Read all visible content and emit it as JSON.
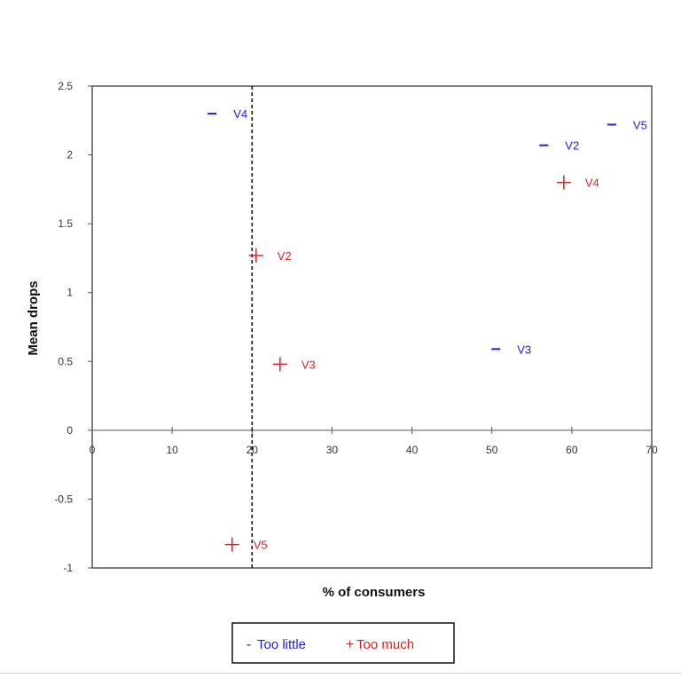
{
  "chart_data": {
    "type": "scatter",
    "xlabel": "% of consumers",
    "ylabel": "Mean drops",
    "xlim": [
      0,
      70
    ],
    "ylim": [
      -1,
      2.5
    ],
    "x_ticks": [
      "0",
      "10",
      "20",
      "30",
      "40",
      "50",
      "60",
      "70"
    ],
    "y_ticks": [
      "-1",
      "-0.5",
      "0",
      "0.5",
      "1",
      "1.5",
      "2",
      "2.5"
    ],
    "reference_line": {
      "x": 20,
      "style": "dashed"
    },
    "series": [
      {
        "name": "Too little",
        "marker": "-",
        "color": "#2020e0",
        "points": [
          {
            "label": "V4",
            "x": 15,
            "y": 2.3
          },
          {
            "label": "V2",
            "x": 56.5,
            "y": 2.07
          },
          {
            "label": "V5",
            "x": 65,
            "y": 2.22
          },
          {
            "label": "V3",
            "x": 50.5,
            "y": 0.59
          }
        ]
      },
      {
        "name": "Too much",
        "marker": "+",
        "color": "#e02020",
        "points": [
          {
            "label": "V4",
            "x": 59,
            "y": 1.8
          },
          {
            "label": "V2",
            "x": 20.5,
            "y": 1.27
          },
          {
            "label": "V3",
            "x": 23.5,
            "y": 0.48
          },
          {
            "label": "V5",
            "x": 17.5,
            "y": -0.83
          }
        ]
      }
    ],
    "legend": {
      "position": "bottom",
      "items": [
        {
          "symbol": "-",
          "text": "Too little",
          "color": "#2020e0"
        },
        {
          "symbol": "+",
          "text": "Too much",
          "color": "#e02020"
        }
      ]
    }
  }
}
